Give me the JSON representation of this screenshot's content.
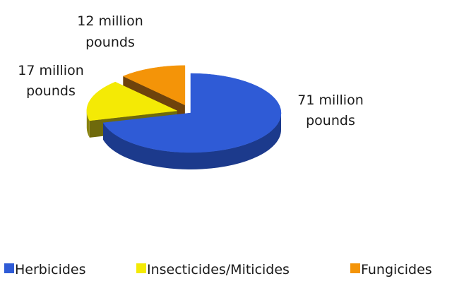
{
  "chart_data": {
    "type": "pie",
    "style": "3d-exploded",
    "title": "",
    "units": "million pounds",
    "legend_position": "bottom",
    "slices": [
      {
        "name": "Herbicides",
        "value": 71,
        "label_line1": "71 million",
        "label_line2": "pounds",
        "color_top": "#2f5bd6",
        "color_side": "#1c3a8c",
        "color_edge": "#16307a"
      },
      {
        "name": "Insecticides/Miticides",
        "value": 17,
        "label_line1": "17 million",
        "label_line2": "pounds",
        "color_top": "#f4ea05",
        "color_side": "#8a8410",
        "color_edge": "#6f6a0c"
      },
      {
        "name": "Fungicides",
        "value": 12,
        "label_line1": "12 million",
        "label_line2": "pounds",
        "color_top": "#f49408",
        "color_side": "#8a5410",
        "color_edge": "#6f430c"
      }
    ]
  }
}
